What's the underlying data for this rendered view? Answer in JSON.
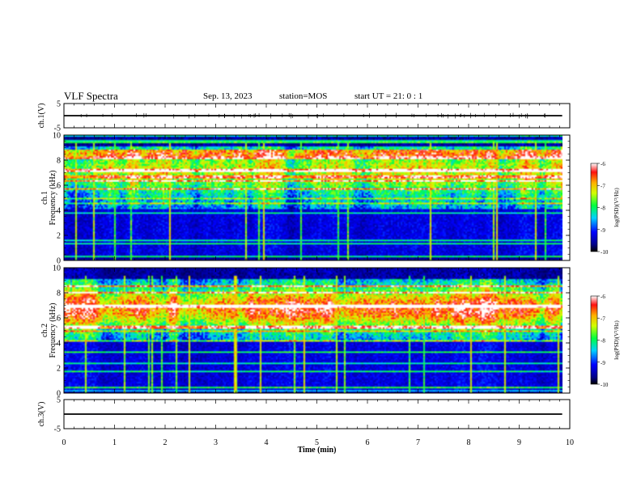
{
  "header": {
    "title": "VLF Spectra",
    "date": "Sep. 13, 2023",
    "station": "station=MOS",
    "start": "start  UT  =   21: 0   : 1"
  },
  "chart_data": [
    {
      "type": "line",
      "panel": "ch.1 waveform",
      "ylabel": "ch.1(V)",
      "ylim": [
        -5,
        5
      ],
      "yticks": [
        "5",
        "-5"
      ],
      "xlim": [
        0,
        10
      ],
      "level": 0
    },
    {
      "type": "heatmap",
      "panel": "ch.1 spectrogram",
      "ylabel": "ch.1\nFrequency (kHz)",
      "ylabel_line1": "ch.1",
      "ylabel_line2": "Frequency (kHz)",
      "ylim": [
        0,
        10
      ],
      "yticks": [
        "0",
        "2",
        "4",
        "6",
        "8",
        "10"
      ],
      "xlim": [
        0,
        9.85
      ],
      "colorbar": {
        "label": "log(PSD)(V²/Hz)",
        "range": [
          -10,
          -6
        ],
        "ticks": [
          "-6",
          "-7",
          "-8",
          "-9",
          "-10"
        ]
      }
    },
    {
      "type": "heatmap",
      "panel": "ch.2 spectrogram",
      "ylabel_line1": "ch.2",
      "ylabel_line2": "Frequency (kHz)",
      "ylim": [
        0,
        10
      ],
      "yticks": [
        "0",
        "2",
        "4",
        "6",
        "8",
        "10"
      ],
      "xlim": [
        0,
        9.85
      ],
      "colorbar": {
        "label": "log(PSD)(V²/Hz)",
        "range": [
          -10,
          -6
        ],
        "ticks": [
          "-6",
          "-7",
          "-8",
          "-9",
          "-10"
        ]
      }
    },
    {
      "type": "line",
      "panel": "ch.3 waveform",
      "ylabel": "ch.3(V)",
      "ylim": [
        -5,
        5
      ],
      "yticks": [
        "5",
        "-5"
      ],
      "xlim": [
        0,
        10
      ],
      "level": 0
    }
  ],
  "xaxis": {
    "label": "Time (min)",
    "ticks": [
      "0",
      "1",
      "2",
      "3",
      "4",
      "5",
      "6",
      "7",
      "8",
      "9",
      "10"
    ]
  }
}
